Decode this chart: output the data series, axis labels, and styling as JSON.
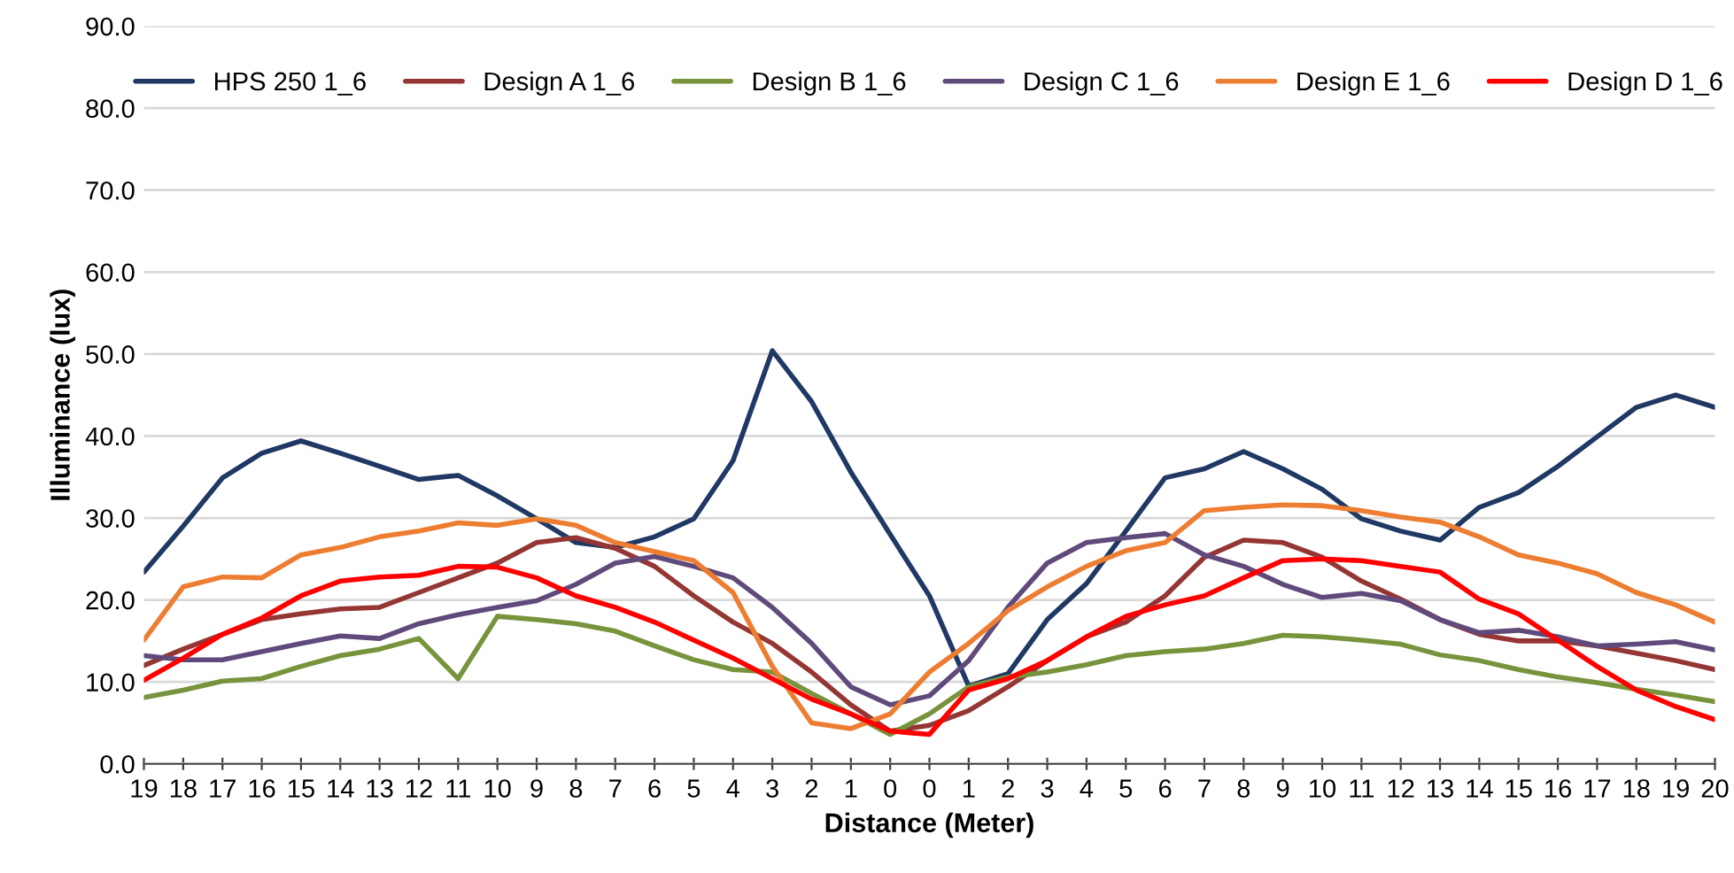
{
  "chart_data": {
    "type": "line",
    "xlabel": "Distance (Meter)",
    "ylabel": "Illuminance (lux)",
    "categories": [
      "19",
      "18",
      "17",
      "16",
      "15",
      "14",
      "13",
      "12",
      "11",
      "10",
      "9",
      "8",
      "7",
      "6",
      "5",
      "4",
      "3",
      "2",
      "1",
      "0",
      "0",
      "1",
      "2",
      "3",
      "4",
      "5",
      "6",
      "7",
      "8",
      "9",
      "10",
      "11",
      "12",
      "13",
      "14",
      "15",
      "16",
      "17",
      "18",
      "19",
      "20"
    ],
    "series": [
      {
        "name": "HPS 250 1_6",
        "color": "#1f3864",
        "values": [
          23.4,
          29,
          34.9,
          37.9,
          39.4,
          37.9,
          36.3,
          34.7,
          35.2,
          32.7,
          29.9,
          27,
          26.4,
          27.7,
          29.9,
          37,
          50.4,
          44.2,
          35.6,
          28,
          20.5,
          9.5,
          11,
          17.6,
          22,
          28.4,
          34.9,
          36,
          38.1,
          36,
          33.5,
          29.9,
          28.4,
          27.3,
          31.3,
          33.1,
          36.3,
          39.9,
          43.5,
          45,
          43.5
        ]
      },
      {
        "name": "Design A 1_6",
        "color": "#943634",
        "values": [
          12,
          14,
          15.8,
          17.6,
          18.3,
          18.9,
          19.1,
          20.9,
          22.7,
          24.5,
          27,
          27.6,
          26.3,
          24.1,
          20.5,
          17.3,
          14.7,
          11.2,
          7.2,
          4,
          4.7,
          6.5,
          9.4,
          12.6,
          15.5,
          17.3,
          20.5,
          25.2,
          27.3,
          27,
          25.2,
          22.3,
          20.1,
          17.6,
          15.8,
          15,
          15,
          14.4,
          13.5,
          12.6,
          11.5
        ]
      },
      {
        "name": "Design B 1_6",
        "color": "#77933c",
        "values": [
          8.1,
          9,
          10.1,
          10.4,
          11.9,
          13.2,
          14,
          15.3,
          10.4,
          18,
          17.6,
          17.1,
          16.2,
          14.4,
          12.7,
          11.5,
          11.2,
          8.6,
          6.1,
          3.6,
          6.1,
          9.4,
          10.6,
          11.2,
          12.1,
          13.2,
          13.7,
          14,
          14.7,
          15.7,
          15.5,
          15.1,
          14.6,
          13.3,
          12.6,
          11.5,
          10.6,
          9.9,
          9.1,
          8.4,
          7.6
        ]
      },
      {
        "name": "Design C 1_6",
        "color": "#604a7b",
        "values": [
          13.2,
          12.7,
          12.7,
          13.7,
          14.7,
          15.6,
          15.3,
          17.1,
          18.2,
          19.1,
          19.9,
          21.9,
          24.5,
          25.3,
          24.1,
          22.7,
          19.1,
          14.7,
          9.4,
          7.2,
          8.3,
          12.6,
          19.1,
          24.5,
          27,
          27.6,
          28.1,
          25.5,
          24.1,
          21.9,
          20.3,
          20.8,
          19.9,
          17.6,
          16,
          16.3,
          15.5,
          14.4,
          14.6,
          14.9,
          13.9
        ]
      },
      {
        "name": "Design E 1_6",
        "color": "#ed7d31",
        "values": [
          15.1,
          21.6,
          22.8,
          22.7,
          25.5,
          26.4,
          27.7,
          28.4,
          29.4,
          29.1,
          29.9,
          29.1,
          27,
          25.9,
          24.8,
          20.9,
          11.9,
          5,
          4.3,
          6.1,
          11.2,
          14.7,
          18.7,
          21.6,
          24.1,
          26,
          27,
          30.9,
          31.3,
          31.6,
          31.5,
          30.9,
          30.1,
          29.5,
          27.7,
          25.5,
          24.5,
          23.2,
          20.9,
          19.4,
          17.3
        ]
      },
      {
        "name": "Design D 1_6",
        "color": "#ff0000",
        "values": [
          10.2,
          12.9,
          15.8,
          17.8,
          20.5,
          22.3,
          22.8,
          23,
          24.1,
          24,
          22.7,
          20.5,
          19.1,
          17.3,
          15.1,
          12.9,
          10.4,
          7.9,
          6.1,
          4,
          3.6,
          9,
          10.4,
          12.6,
          15.5,
          18,
          19.4,
          20.5,
          22.7,
          24.8,
          25,
          24.8,
          24.1,
          23.4,
          20.1,
          18.3,
          15.1,
          11.9,
          9,
          7,
          5.4
        ]
      }
    ],
    "ylim": [
      0,
      90
    ],
    "yticks": [
      {
        "value": 0,
        "label": "0.0"
      },
      {
        "value": 10,
        "label": "10.0"
      },
      {
        "value": 20,
        "label": "20.0"
      },
      {
        "value": 30,
        "label": "30.0"
      },
      {
        "value": 40,
        "label": "40.0"
      },
      {
        "value": 50,
        "label": "50.0"
      },
      {
        "value": 60,
        "label": "60.0"
      },
      {
        "value": 70,
        "label": "70.0"
      },
      {
        "value": 80,
        "label": "80.0"
      },
      {
        "value": 90,
        "label": "90.0"
      }
    ],
    "grid": "y",
    "legend": "top",
    "marker": "none",
    "line_style": "solid"
  }
}
